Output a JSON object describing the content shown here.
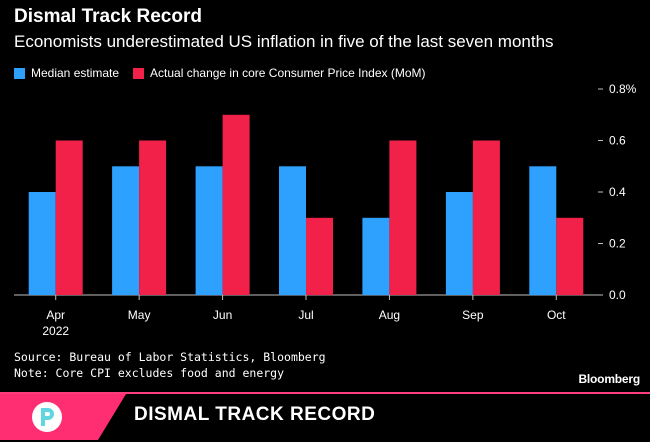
{
  "chart_data": {
    "type": "bar",
    "title": "Dismal Track Record",
    "subtitle": "Economists underestimated US inflation in five of the last seven months",
    "categories": [
      "Apr",
      "May",
      "Jun",
      "Jul",
      "Aug",
      "Sep",
      "Oct"
    ],
    "category_sublabels": [
      "2022",
      "",
      "",
      "",
      "",
      "",
      ""
    ],
    "series": [
      {
        "name": "Median estimate",
        "color": "#2ea1ff",
        "values": [
          0.4,
          0.5,
          0.5,
          0.5,
          0.3,
          0.4,
          0.5
        ]
      },
      {
        "name": "Actual change in core Consumer Price Index (MoM)",
        "color": "#f2214a",
        "values": [
          0.6,
          0.6,
          0.7,
          0.3,
          0.6,
          0.6,
          0.3
        ]
      }
    ],
    "ylim": [
      0,
      0.8
    ],
    "yticks": [
      0.0,
      0.2,
      0.4,
      0.6,
      0.8
    ],
    "ytick_labels": [
      "0.0",
      "0.2",
      "0.4",
      "0.6",
      "0.8%"
    ],
    "y_axis_side": "right",
    "grid": false,
    "legend_position": "top-left"
  },
  "footnotes": {
    "source": "Source: Bureau of Labor Statistics, Bloomberg",
    "note": "Note: Core CPI excludes food and energy"
  },
  "brand": "Bloomberg",
  "banner": {
    "title": "DISMAL TRACK RECORD",
    "accent_color": "#ff2d72"
  }
}
